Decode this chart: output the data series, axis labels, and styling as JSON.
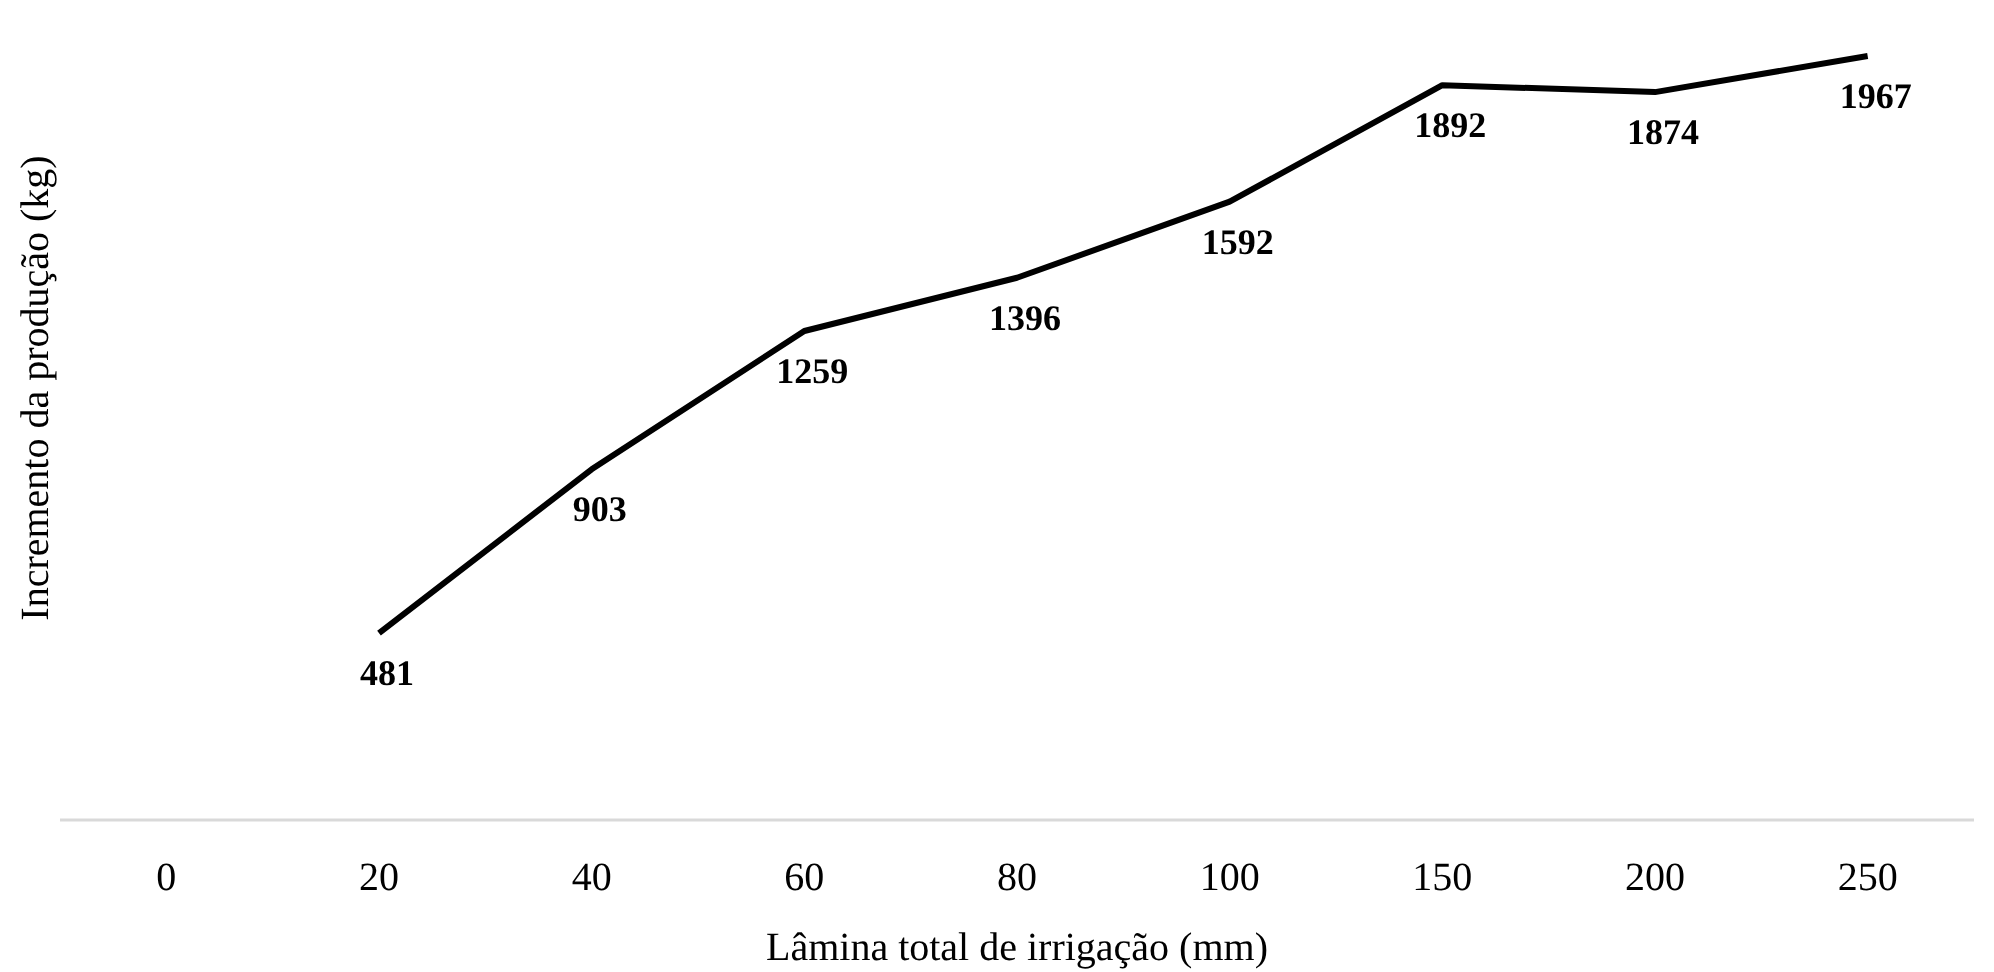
{
  "chart_data": {
    "type": "line",
    "xlabel": "Lâmina total de irrigação (mm)",
    "ylabel": "Incremento da produção (kg)",
    "categories": [
      "0",
      "20",
      "40",
      "60",
      "80",
      "100",
      "150",
      "200",
      "250"
    ],
    "series": [
      {
        "color": "#000000",
        "values": [
          null,
          481,
          903,
          1259,
          1396,
          1592,
          1892,
          1874,
          1967
        ]
      }
    ],
    "tick_labels": "x",
    "data_labels": true,
    "marker": "none",
    "line_style": "solid"
  }
}
